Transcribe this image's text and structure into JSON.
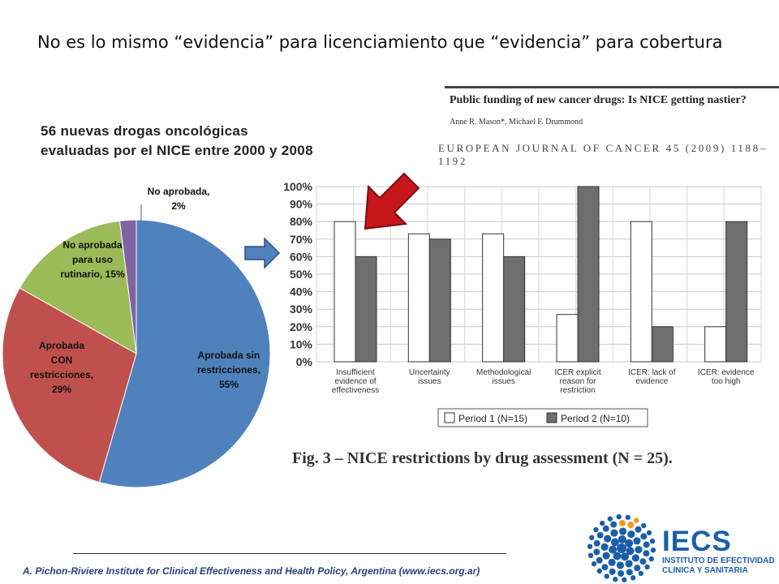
{
  "slide": {
    "title": "No es lo mismo “evidencia” para licenciamiento que “evidencia” para cobertura",
    "subtitle_line1": "56 nuevas drogas oncológicas",
    "subtitle_line2": "evaluadas por el NICE entre 2000 y 2008",
    "footer": "A. Pichon-Riviere Institute for Clinical Effectiveness and Health Policy, Argentina (www.iecs.org.ar)"
  },
  "article": {
    "title": "Public funding of new cancer drugs: Is NICE getting nastier?",
    "authors": "Anne R. Mason*, Michael F. Drummond",
    "journal": "EUROPEAN JOURNAL OF CANCER 45 (2009) 1188–1192",
    "figure_caption": "Fig. 3 – NICE restrictions by drug assessment (N = 25)."
  },
  "logo": {
    "name": "IECS",
    "line1": "INSTITUTO DE EFECTIVIDAD",
    "line2": "CLINICA Y SANITARIA",
    "color": "#1a5ea8"
  },
  "chart_data": [
    {
      "type": "pie",
      "slices": [
        {
          "label_lines": [
            "Aprobada sin",
            "restricciones,",
            "55%"
          ],
          "value": 55,
          "color": "#4f81bd"
        },
        {
          "label_lines": [
            "Aprobada",
            "CON",
            "restricciones,",
            "29%"
          ],
          "value": 29,
          "color": "#c0504d"
        },
        {
          "label_lines": [
            "No aprobada",
            "para uso",
            "rutinario, 15%"
          ],
          "value": 15,
          "color": "#9bbb59"
        },
        {
          "label_lines": [
            "No aprobada,",
            "2%"
          ],
          "value": 2,
          "color": "#8064a2"
        }
      ]
    },
    {
      "type": "bar",
      "categories": [
        [
          "Insufficient",
          "evidence of",
          "effectiveness"
        ],
        [
          "Uncertainty",
          "issues"
        ],
        [
          "Methodological",
          "issues"
        ],
        [
          "ICER explicit",
          "reason for",
          "restriction"
        ],
        [
          "ICER: lack of",
          "evidence"
        ],
        [
          "ICER: evidence",
          "too high"
        ]
      ],
      "series": [
        {
          "name": "Period 1 (N=15)",
          "values": [
            80,
            73,
            73,
            27,
            80,
            20
          ],
          "color": "#ffffff"
        },
        {
          "name": "Period 2 (N=10)",
          "values": [
            60,
            70,
            60,
            100,
            20,
            80
          ],
          "color": "#6e6e6e"
        }
      ],
      "ylim": [
        0,
        100
      ],
      "yticks": [
        "0%",
        "10%",
        "20%",
        "30%",
        "40%",
        "50%",
        "60%",
        "70%",
        "80%",
        "90%",
        "100%"
      ],
      "grid": true,
      "legend": "bottom"
    }
  ]
}
